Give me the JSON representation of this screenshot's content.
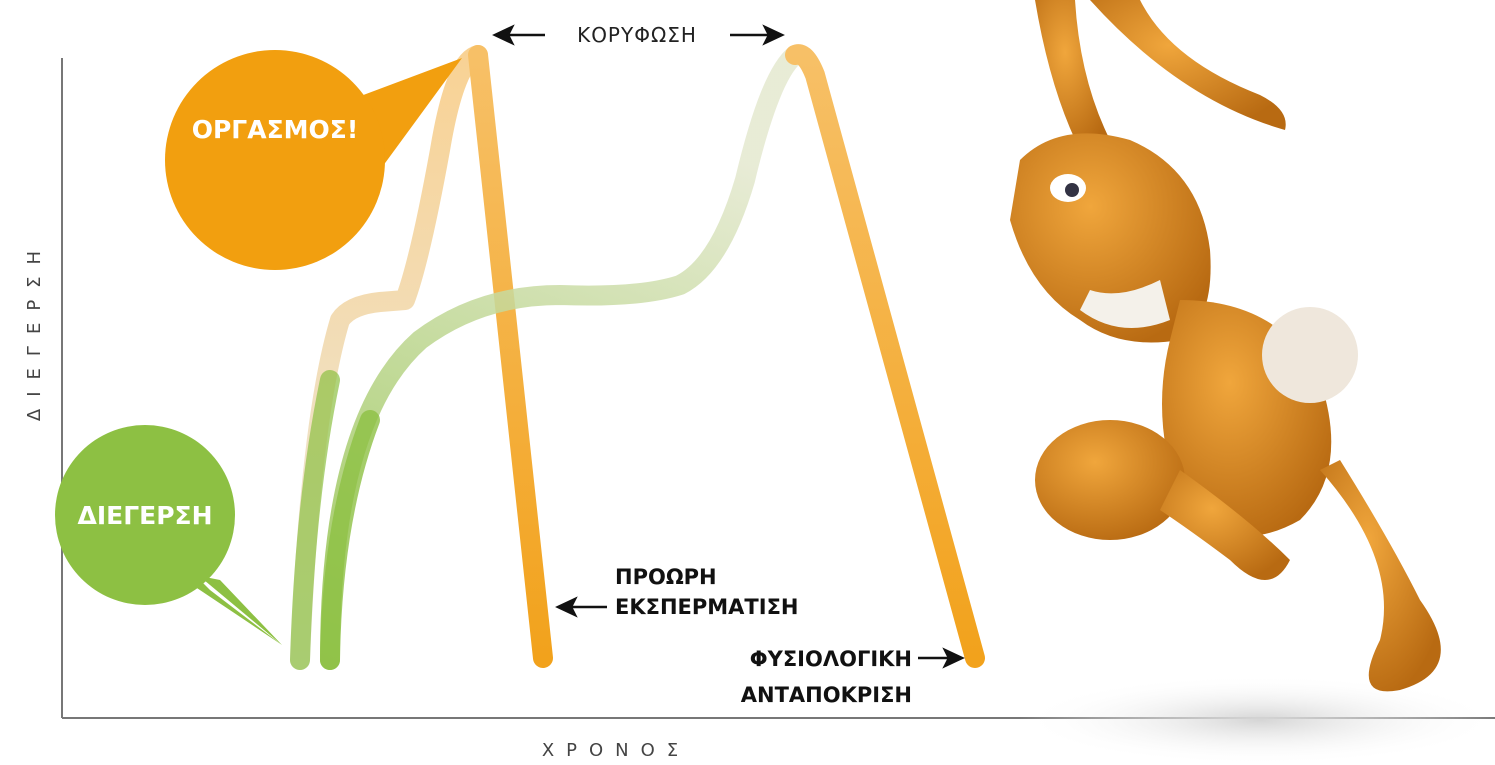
{
  "y_axis_label": "ΔΙΕΓΕΡΣΗ",
  "x_axis_label": "ΧΡΟΝΟΣ",
  "bubbles": {
    "orgasm": "ΟΡΓΑΣΜΟΣ!",
    "arousal": "ΔΙΕΓΕΡΣΗ"
  },
  "labels": {
    "peak": "ΚΟΡΥΦΩΣΗ",
    "premature": [
      "ΠΡΟΩΡΗ",
      "ΕΚΣΠΕΡΜΑΤΙΣΗ"
    ],
    "normal": [
      "ΦΥΣΙΟΛΟΓΙΚΗ",
      "ΑΝΤΑΠΟΚΡΙΣΗ"
    ]
  }
}
